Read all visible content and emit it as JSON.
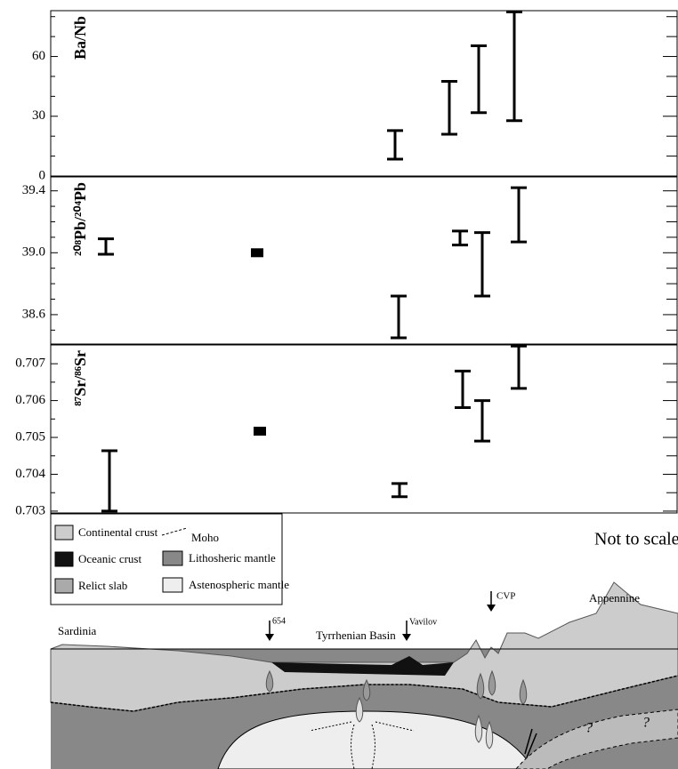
{
  "chart_data": [
    {
      "type": "range",
      "ylabel": "Ba/Nb",
      "ylim": [
        0,
        83
      ],
      "yticks": [
        0,
        30,
        60
      ],
      "yminor": [
        10,
        20,
        40,
        50,
        70,
        80
      ],
      "low": [
        8.5,
        21,
        31.8,
        27.8
      ],
      "high": [
        22.8,
        47.5,
        65.4,
        82.4
      ]
    },
    {
      "type": "range",
      "ylabel": "²⁰⁸Pb/²⁰⁴Pb",
      "ylim": [
        38.41,
        39.49
      ],
      "yticks": [
        38.6,
        {
          "value": 39,
          "label": "39.0"
        },
        39.4
      ],
      "yminor": [
        38.5,
        38.7,
        38.8,
        38.9,
        39.1,
        39.2,
        39.3
      ],
      "low": [
        38.99,
        39.0,
        38.45,
        39.05,
        38.72,
        39.07
      ],
      "high": [
        39.09,
        39.0,
        38.72,
        39.14,
        39.13,
        39.42
      ]
    },
    {
      "type": "range",
      "ylabel": "⁸⁷Sr/⁸⁶Sr",
      "ylim": [
        0.70295,
        0.70751
      ],
      "yticks": [
        0.703,
        0.704,
        0.705,
        0.706,
        0.707
      ],
      "yminor": [
        0.7035,
        0.7045,
        0.7055,
        0.7065
      ],
      "low": [
        0.703,
        0.70517,
        0.70339,
        0.70581,
        0.7049,
        0.70633
      ],
      "high": [
        0.70464,
        0.70517,
        0.70375,
        0.7068,
        0.706,
        0.70748
      ]
    }
  ],
  "diagram": {
    "legend": [
      "Continental crust",
      "Oceanic crust",
      "Relict slab",
      "Moho",
      "Lithosheric mantle",
      "Astenospheric mantle"
    ],
    "note": "Not to scale",
    "labels": {
      "sardinia": "Sardinia",
      "site": "654",
      "basin": "Tyrrhenian Basin",
      "vavilov": "Vavilov",
      "cvp": "CVP",
      "appennine": "Appennine",
      "q1": "?",
      "q2": "?"
    }
  }
}
